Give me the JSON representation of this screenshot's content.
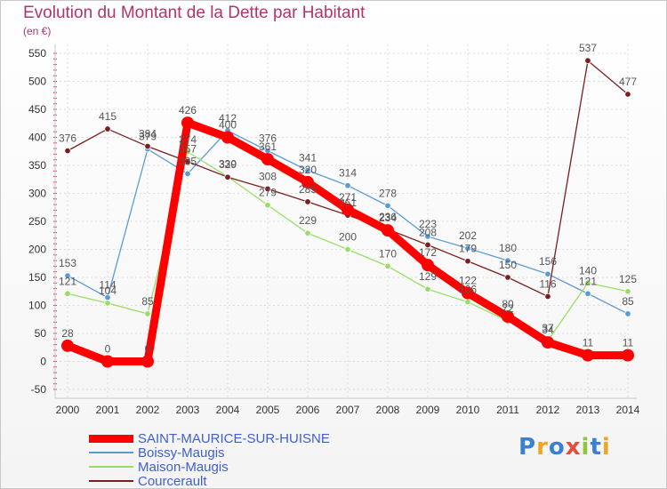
{
  "header": {
    "title": "Evolution du Montant de la Dette par Habitant",
    "unit": "(en €)"
  },
  "brand": {
    "text": "Proxiti",
    "colors": [
      "#3b7fd1",
      "#f0a623",
      "#3b7fd1",
      "#e84c3d",
      "#8fc63f",
      "#3b7fd1",
      "#f0a623"
    ]
  },
  "chart_data": {
    "type": "line",
    "title": "Evolution du Montant de la Dette par Habitant",
    "ylabel": "(en €)",
    "xlabel": "",
    "ylim": [
      -50,
      550
    ],
    "yticks": [
      -50,
      0,
      50,
      100,
      150,
      200,
      250,
      300,
      350,
      400,
      450,
      500,
      550
    ],
    "grid": true,
    "legend_position": "bottom-left",
    "categories": [
      "2000",
      "2001",
      "2002",
      "2003",
      "2004",
      "2005",
      "2006",
      "2007",
      "2008",
      "2009",
      "2010",
      "2011",
      "2012",
      "2013",
      "2014"
    ],
    "series": [
      {
        "name": "SAINT-MAURICE-SUR-HUISNE",
        "color": "#ff0000",
        "emphasis": true,
        "values": [
          28,
          0,
          0,
          426,
          400,
          361,
          320,
          271,
          234,
          172,
          122,
          80,
          34,
          11,
          11
        ]
      },
      {
        "name": "Boissy-Maugis",
        "color": "#5b9bd5",
        "emphasis": false,
        "values": [
          153,
          114,
          379,
          335,
          412,
          376,
          341,
          314,
          278,
          223,
          202,
          180,
          156,
          121,
          85
        ]
      },
      {
        "name": "Maison-Maugis",
        "color": "#99dd66",
        "emphasis": false,
        "values": [
          121,
          104,
          85,
          374,
          330,
          279,
          229,
          200,
          170,
          129,
          106,
          72,
          37,
          140,
          125
        ]
      },
      {
        "name": "Courcerault",
        "color": "#7a1f1f",
        "emphasis": false,
        "values": [
          376,
          415,
          384,
          357,
          329,
          308,
          285,
          261,
          236,
          208,
          179,
          150,
          116,
          537,
          477
        ]
      }
    ]
  }
}
